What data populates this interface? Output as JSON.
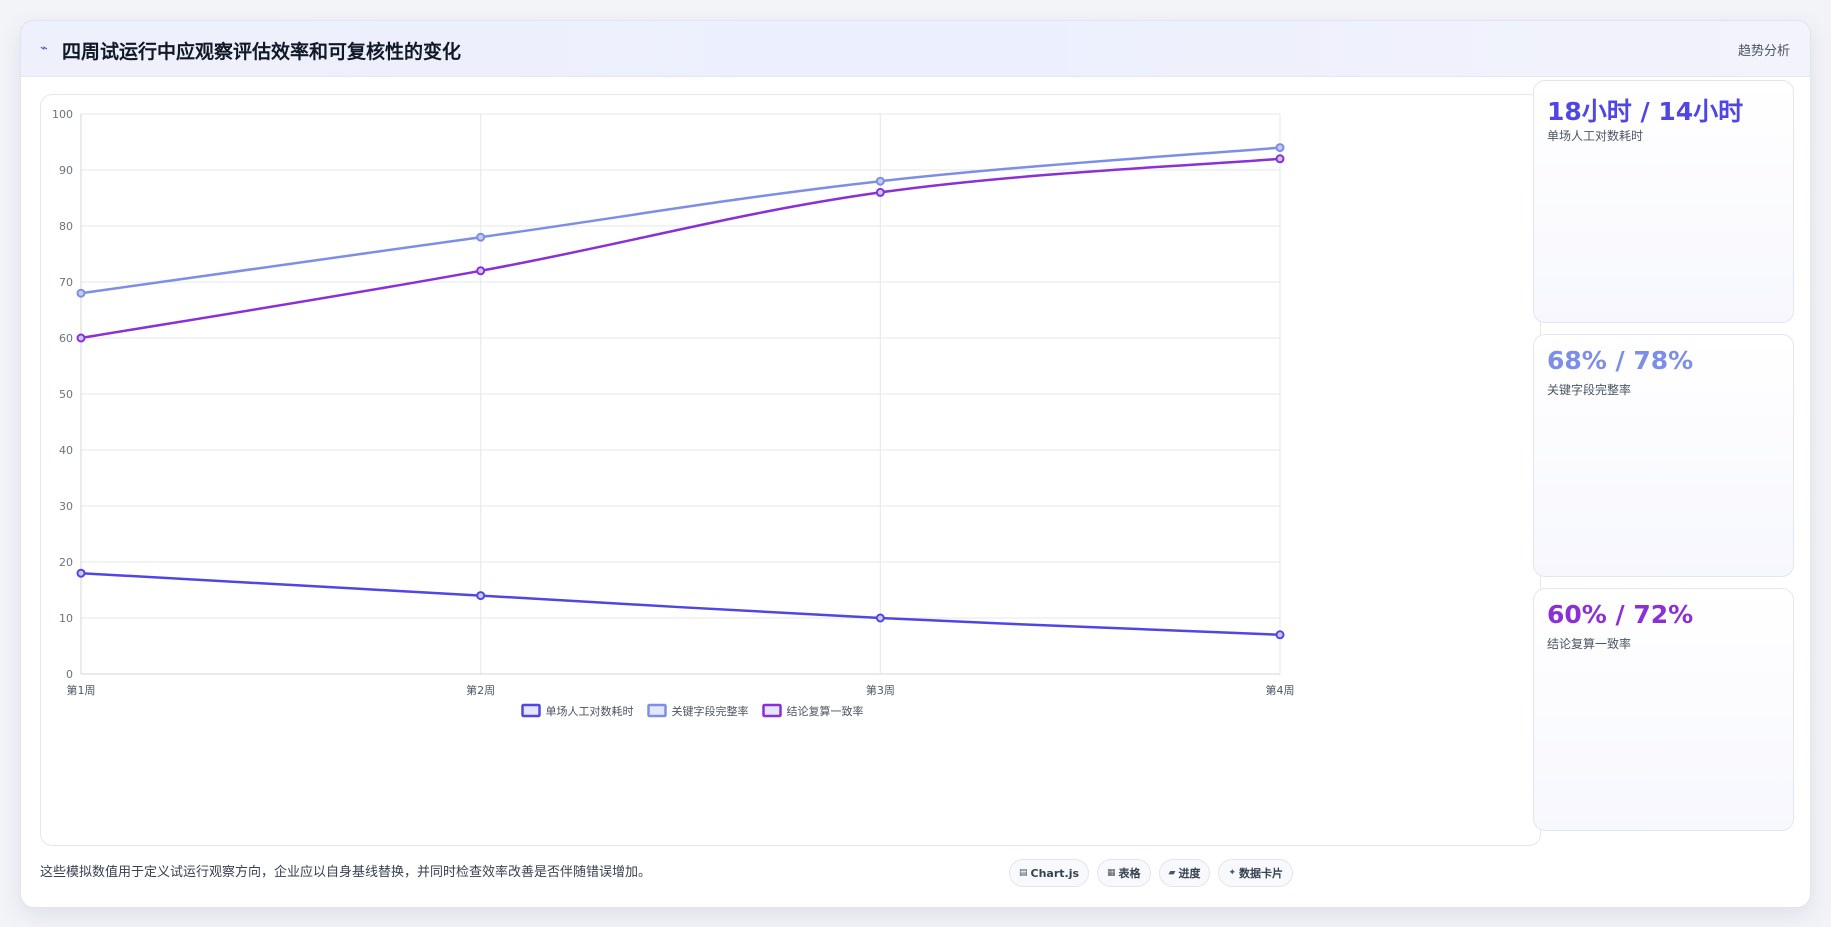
{
  "header": {
    "icon": "trend-line-icon",
    "title": "四周试运行中应观察评估效率和可复核性的变化",
    "right_label": "趋势分析"
  },
  "colors": {
    "series1": "#4f46e5",
    "series2": "#7c8ee8",
    "series3": "#8b2fd6"
  },
  "chart_data": {
    "type": "line",
    "x": [
      "第1周",
      "第2周",
      "第3周",
      "第4周"
    ],
    "ylim": [
      0,
      100
    ],
    "yticks": [
      0,
      10,
      20,
      30,
      40,
      50,
      60,
      70,
      80,
      90,
      100
    ],
    "grid": true,
    "legend_position": "bottom",
    "series": [
      {
        "name": "单场人工对数耗时",
        "values": [
          18,
          14,
          10,
          7
        ],
        "color": "#4f46e5"
      },
      {
        "name": "关键字段完整率",
        "values": [
          68,
          78,
          88,
          94
        ],
        "color": "#7c8ee8"
      },
      {
        "name": "结论复算一致率",
        "values": [
          60,
          72,
          86,
          92
        ],
        "color": "#8b2fd6"
      }
    ]
  },
  "stats": [
    {
      "value": "18小时 / 14小时",
      "label": "单场人工对数耗时",
      "color": "#4f46e5"
    },
    {
      "value": "68% / 78%",
      "label": "关键字段完整率",
      "color": "#7c8ee8"
    },
    {
      "value": "60% / 72%",
      "label": "结论复算一致率",
      "color": "#8b2fd6"
    }
  ],
  "footnote": "这些模拟数值用于定义试运行观察方向，企业应以自身基线替换，并同时检查效率改善是否伴随错误增加。",
  "chips": [
    {
      "icon": "chart-icon",
      "glyph": "▤",
      "label": "Chart.js"
    },
    {
      "icon": "table-icon",
      "glyph": "▦",
      "label": "表格"
    },
    {
      "icon": "progress-icon",
      "glyph": "▰",
      "label": "进度"
    },
    {
      "icon": "sparkle-icon",
      "glyph": "✦",
      "label": "数据卡片"
    }
  ]
}
